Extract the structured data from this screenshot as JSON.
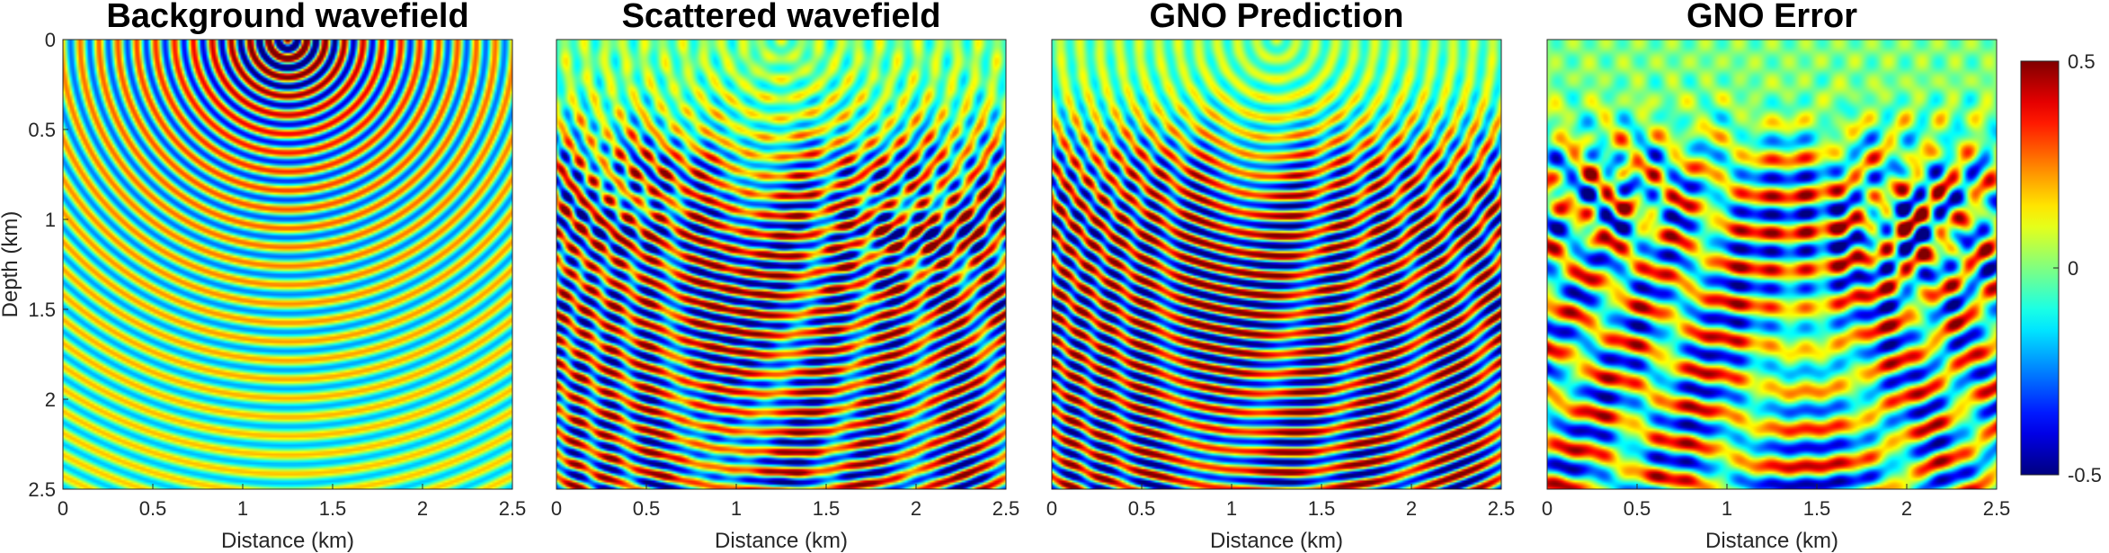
{
  "chart_data": {
    "type": "heatmap",
    "colormap": "jet",
    "panels": [
      {
        "title": "Background wavefield",
        "field": "background",
        "xlabel": "Distance (km)",
        "ylabel": "Depth (km)",
        "xlim": [
          0,
          2.5
        ],
        "ylim": [
          0,
          2.5
        ],
        "y_reversed": true,
        "xticks": [
          "0",
          "0.5",
          "1",
          "1.5",
          "2",
          "2.5"
        ],
        "yticks": [
          "0",
          "0.5",
          "1",
          "1.5",
          "2",
          "2.5"
        ],
        "source_position_km": [
          1.25,
          0.0
        ]
      },
      {
        "title": "Scattered wavefield",
        "field": "scattered",
        "xlabel": "Distance (km)",
        "xlim": [
          0,
          2.5
        ],
        "ylim": [
          0,
          2.5
        ],
        "y_reversed": true,
        "xticks": [
          "0",
          "0.5",
          "1",
          "1.5",
          "2",
          "2.5"
        ]
      },
      {
        "title": "GNO Prediction",
        "field": "prediction",
        "xlabel": "Distance (km)",
        "xlim": [
          0,
          2.5
        ],
        "ylim": [
          0,
          2.5
        ],
        "y_reversed": true,
        "xticks": [
          "0",
          "0.5",
          "1",
          "1.5",
          "2",
          "2.5"
        ]
      },
      {
        "title": "GNO Error",
        "field": "error",
        "xlabel": "Distance (km)",
        "xlim": [
          0,
          2.5
        ],
        "ylim": [
          0,
          2.5
        ],
        "y_reversed": true,
        "xticks": [
          "0",
          "0.5",
          "1",
          "1.5",
          "2",
          "2.5"
        ]
      }
    ],
    "colorbar": {
      "range": [
        -0.5,
        0.5
      ],
      "tick_values": [
        0.5,
        0,
        -0.5
      ],
      "tick_labels": [
        "0.5",
        "0",
        "-0.5"
      ]
    }
  }
}
